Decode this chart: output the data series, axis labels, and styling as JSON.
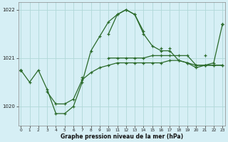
{
  "title": "Graphe pression niveau de la mer (hPa)",
  "bg_color": "#d6eff5",
  "grid_color": "#b0d8d8",
  "line_color": "#2a6a2a",
  "hours": [
    0,
    1,
    2,
    3,
    4,
    5,
    6,
    7,
    8,
    9,
    10,
    11,
    12,
    13,
    14,
    15,
    16,
    17,
    18,
    19,
    20,
    21,
    22,
    23
  ],
  "series_main": [
    1020.75,
    1020.5,
    1020.75,
    1020.35,
    1019.85,
    1019.85,
    1020.0,
    1020.5,
    1021.15,
    1021.45,
    1021.75,
    1021.9,
    1022.0,
    1021.9,
    1021.5,
    1021.25,
    1021.15,
    1021.15,
    1020.95,
    1020.9,
    1020.8,
    1020.85,
    1020.9,
    1021.7
  ],
  "series_straight": [
    1020.75,
    null,
    null,
    null,
    null,
    null,
    null,
    null,
    null,
    null,
    null,
    null,
    null,
    null,
    null,
    null,
    1021.2,
    null,
    null,
    null,
    null,
    1021.05,
    null,
    1021.7
  ],
  "series_hump": [
    1020.75,
    null,
    null,
    null,
    null,
    null,
    null,
    1020.6,
    null,
    null,
    1021.5,
    1021.9,
    1022.0,
    1021.9,
    1021.55,
    null,
    null,
    1021.2,
    null,
    null,
    null,
    null,
    null,
    1021.7
  ],
  "series_flat1": [
    1020.75,
    null,
    null,
    1020.3,
    1020.05,
    1020.05,
    1020.15,
    1020.55,
    1020.7,
    1020.8,
    1020.85,
    1020.9,
    1020.9,
    1020.9,
    1020.9,
    1020.9,
    1020.9,
    1020.95,
    1020.95,
    1020.9,
    1020.85,
    1020.85,
    1020.85,
    1020.85
  ],
  "series_flat2": [
    1020.75,
    null,
    null,
    null,
    null,
    null,
    null,
    null,
    null,
    null,
    1021.0,
    1021.0,
    1021.0,
    1021.0,
    1021.0,
    1021.05,
    1021.05,
    1021.05,
    1021.05,
    1021.05,
    1020.85,
    1020.85,
    1020.85,
    1020.85
  ],
  "ylim": [
    1019.6,
    1022.15
  ],
  "yticks": [
    1020,
    1021,
    1022
  ],
  "xlim": [
    -0.3,
    23.3
  ],
  "xticks": [
    0,
    1,
    2,
    3,
    4,
    5,
    6,
    7,
    8,
    9,
    10,
    11,
    12,
    13,
    14,
    15,
    16,
    17,
    18,
    19,
    20,
    21,
    22,
    23
  ],
  "figsize": [
    3.2,
    2.0
  ],
  "dpi": 100
}
